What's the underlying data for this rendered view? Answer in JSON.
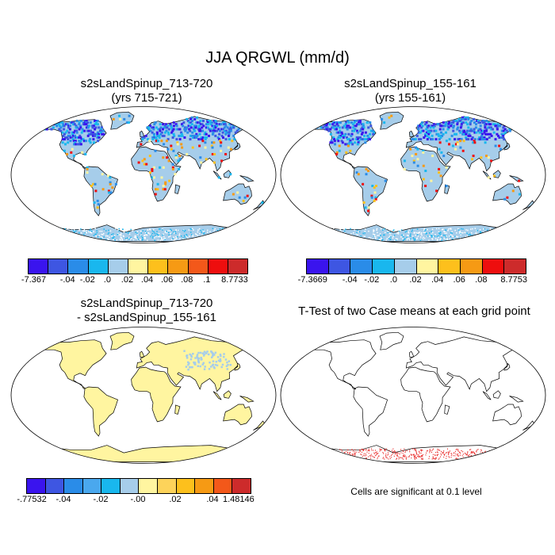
{
  "title": "JJA QRGWL (mm/d)",
  "colors": {
    "ocean": "#ffffff",
    "coast": "#000000",
    "land_light_blue": "#a6cdea",
    "land_yellow": "#fff5a0",
    "sig_red": "#e8201e",
    "scale11": [
      "#3a14ee",
      "#3e56e2",
      "#2a8ce8",
      "#19b7ee",
      "#a6cdea",
      "#fff5a0",
      "#fdc01c",
      "#f69a14",
      "#f3581a",
      "#ee0e0e",
      "#cd2b2b"
    ],
    "scale10": [
      "#3a14ee",
      "#3e56e2",
      "#2a8ce8",
      "#19b7ee",
      "#a6cdea",
      "#fff5a0",
      "#fdc01c",
      "#f69a14",
      "#ee0e0e",
      "#cd2b2b"
    ],
    "scale12": [
      "#3a14ee",
      "#3e56e2",
      "#2a8ce8",
      "#4aa8ee",
      "#19b7ee",
      "#a6cdea",
      "#fff5a0",
      "#fdd35a",
      "#fdc01c",
      "#f69a14",
      "#f3581a",
      "#cd2b2b"
    ]
  },
  "chart_data": [
    {
      "type": "heatmap",
      "title": "s2sLandSpinup_713-720",
      "subtitle": "(yrs 715-721)",
      "colorbar": {
        "boxes": 11,
        "labels": [
          "-7.367",
          "-.04",
          "-.02",
          ".0",
          ".02",
          ".04",
          ".06",
          ".08",
          ".1",
          "8.7733"
        ],
        "min": -7.367,
        "max": 8.7733
      }
    },
    {
      "type": "heatmap",
      "title": "s2sLandSpinup_155-161",
      "subtitle": "(yrs 155-161)",
      "colorbar": {
        "boxes": 10,
        "labels": [
          "-7.3669",
          "-.04",
          "-.02",
          ".0",
          ".02",
          ".04",
          ".06",
          ".08",
          "8.7753"
        ],
        "min": -7.3669,
        "max": 8.7753
      }
    },
    {
      "type": "heatmap",
      "title": "s2sLandSpinup_713-720",
      "subtitle": "- s2sLandSpinup_155-161",
      "colorbar": {
        "boxes": 12,
        "labels": [
          "-.77532",
          "-.04",
          "-.02",
          "-.00",
          ".02",
          ".04",
          "1.48146"
        ],
        "min": -0.77532,
        "max": 1.48146
      }
    },
    {
      "type": "heatmap",
      "title": "T-Test of two Case means at each grid point",
      "note": "Cells are significant at 0.1 level"
    }
  ]
}
